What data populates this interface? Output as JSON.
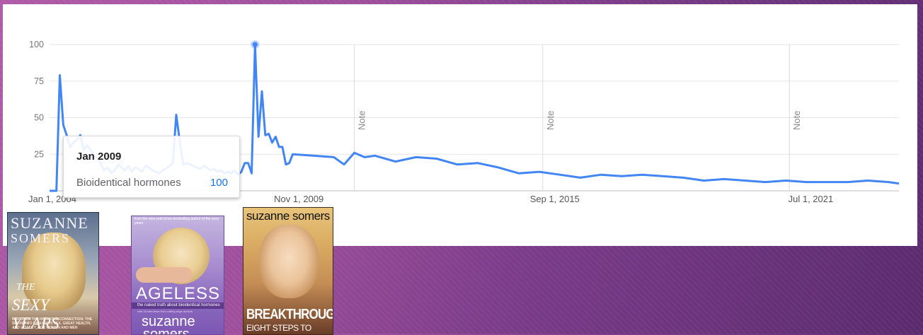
{
  "chart_data": {
    "type": "line",
    "title": "",
    "xlabel": "",
    "ylabel": "",
    "ylim": [
      0,
      100
    ],
    "y_ticks": [
      "100",
      "75",
      "50",
      "25"
    ],
    "x_tick_labels": [
      "Jan 1, 2004",
      "Nov 1, 2009",
      "Sep 1, 2015",
      "Jul 1, 2021"
    ],
    "x_start": "2004-01",
    "x_end": "2024-09",
    "grid": true,
    "annotations": [
      "Note",
      "Note",
      "Note"
    ],
    "note_months": [
      "2011-06",
      "2016-01",
      "2022-01"
    ],
    "highlight": {
      "month": "2009-01",
      "value": 100
    },
    "series": [
      {
        "name": "Bioidentical hormones",
        "color": "#4285f4",
        "points": [
          [
            "2004-01",
            0
          ],
          [
            "2004-02",
            0
          ],
          [
            "2004-03",
            0
          ],
          [
            "2004-04",
            79
          ],
          [
            "2004-05",
            45
          ],
          [
            "2004-06",
            38
          ],
          [
            "2004-07",
            30
          ],
          [
            "2004-08",
            33
          ],
          [
            "2004-09",
            35
          ],
          [
            "2004-10",
            38
          ],
          [
            "2004-11",
            28
          ],
          [
            "2004-12",
            31
          ],
          [
            "2005-01",
            28
          ],
          [
            "2005-02",
            24
          ],
          [
            "2005-03",
            22
          ],
          [
            "2005-04",
            18
          ],
          [
            "2005-05",
            14
          ],
          [
            "2005-06",
            16
          ],
          [
            "2005-07",
            12
          ],
          [
            "2005-08",
            14
          ],
          [
            "2005-09",
            18
          ],
          [
            "2005-10",
            16
          ],
          [
            "2005-11",
            14
          ],
          [
            "2005-12",
            17
          ],
          [
            "2006-01",
            13
          ],
          [
            "2006-02",
            16
          ],
          [
            "2006-03",
            15
          ],
          [
            "2006-04",
            13
          ],
          [
            "2006-05",
            17
          ],
          [
            "2006-06",
            16
          ],
          [
            "2006-07",
            14
          ],
          [
            "2006-08",
            13
          ],
          [
            "2006-09",
            12
          ],
          [
            "2006-10",
            14
          ],
          [
            "2006-11",
            15
          ],
          [
            "2006-12",
            17
          ],
          [
            "2007-01",
            19
          ],
          [
            "2007-02",
            52
          ],
          [
            "2007-03",
            34
          ],
          [
            "2007-04",
            18
          ],
          [
            "2007-05",
            19
          ],
          [
            "2007-06",
            18
          ],
          [
            "2007-07",
            17
          ],
          [
            "2007-08",
            16
          ],
          [
            "2007-09",
            15
          ],
          [
            "2007-10",
            17
          ],
          [
            "2007-11",
            16
          ],
          [
            "2007-12",
            14
          ],
          [
            "2008-01",
            15
          ],
          [
            "2008-02",
            13
          ],
          [
            "2008-03",
            14
          ],
          [
            "2008-04",
            12
          ],
          [
            "2008-05",
            13
          ],
          [
            "2008-06",
            12
          ],
          [
            "2008-07",
            14
          ],
          [
            "2008-08",
            11
          ],
          [
            "2008-09",
            13
          ],
          [
            "2008-10",
            19
          ],
          [
            "2008-11",
            19
          ],
          [
            "2008-12",
            12
          ],
          [
            "2009-01",
            100
          ],
          [
            "2009-02",
            37
          ],
          [
            "2009-03",
            68
          ],
          [
            "2009-04",
            38
          ],
          [
            "2009-05",
            39
          ],
          [
            "2009-06",
            33
          ],
          [
            "2009-07",
            37
          ],
          [
            "2009-08",
            30
          ],
          [
            "2009-09",
            30
          ],
          [
            "2009-10",
            18
          ],
          [
            "2009-11",
            19
          ],
          [
            "2009-12",
            25
          ],
          [
            "2010-06",
            24
          ],
          [
            "2010-12",
            23
          ],
          [
            "2011-03",
            18
          ],
          [
            "2011-06",
            26
          ],
          [
            "2011-09",
            23
          ],
          [
            "2011-12",
            24
          ],
          [
            "2012-06",
            20
          ],
          [
            "2012-12",
            23
          ],
          [
            "2013-06",
            22
          ],
          [
            "2013-12",
            18
          ],
          [
            "2014-06",
            19
          ],
          [
            "2014-12",
            16
          ],
          [
            "2015-06",
            12
          ],
          [
            "2015-12",
            13
          ],
          [
            "2016-06",
            11
          ],
          [
            "2016-12",
            9
          ],
          [
            "2017-06",
            11
          ],
          [
            "2017-12",
            10
          ],
          [
            "2018-06",
            11
          ],
          [
            "2018-12",
            10
          ],
          [
            "2019-06",
            9
          ],
          [
            "2019-12",
            7
          ],
          [
            "2020-06",
            8
          ],
          [
            "2020-12",
            7
          ],
          [
            "2021-06",
            6
          ],
          [
            "2021-12",
            7
          ],
          [
            "2022-06",
            6
          ],
          [
            "2022-12",
            6
          ],
          [
            "2023-06",
            6
          ],
          [
            "2023-12",
            7
          ],
          [
            "2024-06",
            6
          ],
          [
            "2024-09",
            5
          ]
        ]
      }
    ]
  },
  "tooltip": {
    "date": "Jan 2009",
    "term": "Bioidentical hormones",
    "value": "100"
  },
  "books": [
    {
      "title_lines": [
        "SUZANNE",
        "SOMERS",
        "THE",
        "SEXY YEARS"
      ],
      "tagline": "DISCOVER THE HORMONE CONNECTION: THE SECRET TO FABULOUS SEX, GREAT HEALTH, AND VITALITY, FOR WOMEN AND MEN"
    },
    {
      "blurb": "from the new york times bestselling author of the sexy years",
      "title": "AGELESS",
      "subtitle": "the naked truth about bioidentical hormones",
      "fine_print": "with 18 interviews from cutting-edge doctors",
      "author_lines": [
        "suzanne",
        "somers"
      ]
    },
    {
      "author": "suzanne somers",
      "title": "BREAKTHROUGH",
      "subtitle": "EIGHT STEPS TO WELLNESS"
    }
  ]
}
